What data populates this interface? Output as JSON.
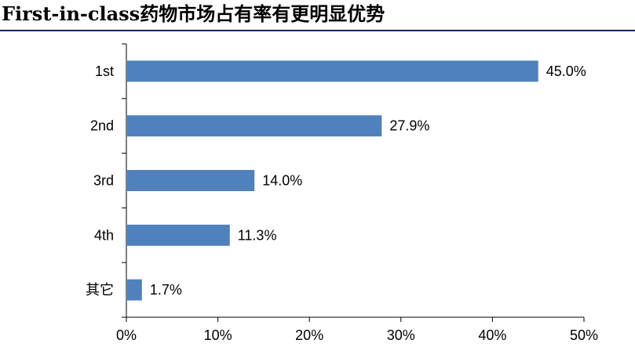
{
  "title": "First-in-class药物市场占有率有更明显优势",
  "chart_data": {
    "type": "bar",
    "orientation": "horizontal",
    "categories": [
      "1st",
      "2nd",
      "3rd",
      "4th",
      "其它"
    ],
    "values": [
      45.0,
      27.9,
      14.0,
      11.3,
      1.7
    ],
    "value_labels": [
      "45.0%",
      "27.9%",
      "14.0%",
      "11.3%",
      "1.7%"
    ],
    "xlim": [
      0,
      50
    ],
    "x_ticks": [
      0,
      10,
      20,
      30,
      40,
      50
    ],
    "x_tick_labels": [
      "0%",
      "10%",
      "20%",
      "30%",
      "40%",
      "50%"
    ],
    "xlabel": "",
    "ylabel": "",
    "grid": false,
    "bar_color": "#4f81bd"
  }
}
